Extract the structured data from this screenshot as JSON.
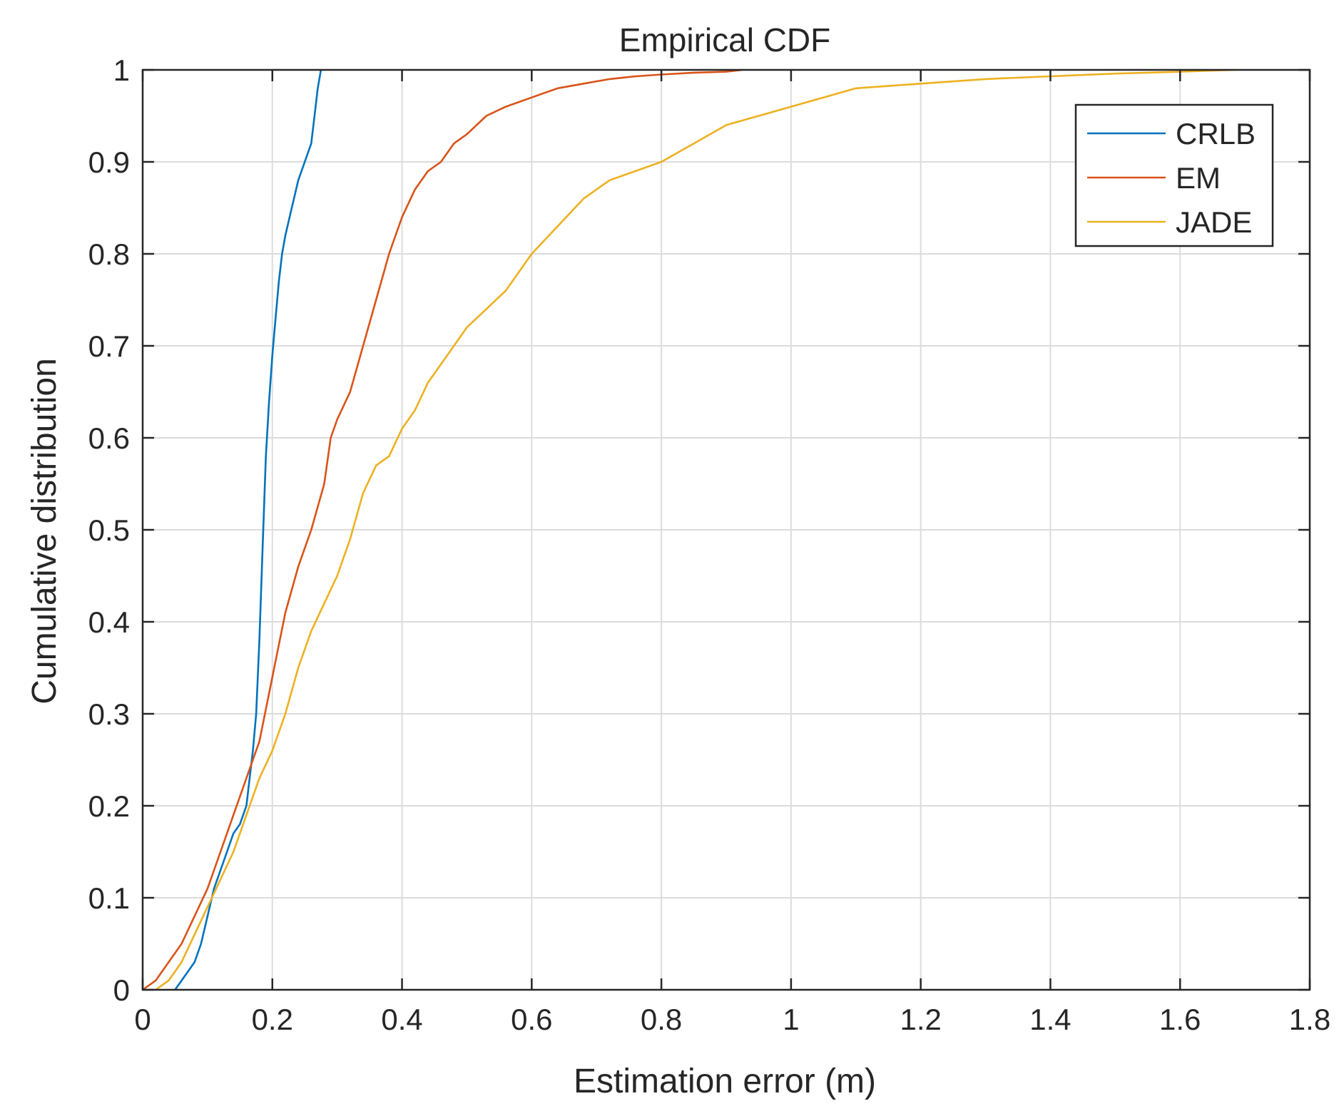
{
  "chart_data": {
    "type": "line",
    "title": "Empirical CDF",
    "xlabel": "Estimation error (m)",
    "ylabel": "Cumulative distribution",
    "xlim": [
      0,
      1.8
    ],
    "ylim": [
      0,
      1
    ],
    "grid": true,
    "legend_position": "top-right",
    "x_ticks": [
      0,
      0.2,
      0.4,
      0.6,
      0.8,
      1,
      1.2,
      1.4,
      1.6,
      1.8
    ],
    "x_tick_labels": [
      "0",
      "0.2",
      "0.4",
      "0.6",
      "0.8",
      "1",
      "1.2",
      "1.4",
      "1.6",
      "1.8"
    ],
    "y_ticks": [
      0,
      0.1,
      0.2,
      0.3,
      0.4,
      0.5,
      0.6,
      0.7,
      0.8,
      0.9,
      1
    ],
    "y_tick_labels": [
      "0",
      "0.1",
      "0.2",
      "0.3",
      "0.4",
      "0.5",
      "0.6",
      "0.7",
      "0.8",
      "0.9",
      "1"
    ],
    "series": [
      {
        "name": "CRLB",
        "color": "#0072BD",
        "x": [
          0.05,
          0.06,
          0.07,
          0.08,
          0.09,
          0.1,
          0.11,
          0.12,
          0.13,
          0.14,
          0.15,
          0.16,
          0.17,
          0.175,
          0.18,
          0.185,
          0.19,
          0.195,
          0.2,
          0.205,
          0.21,
          0.215,
          0.22,
          0.23,
          0.24,
          0.25,
          0.26,
          0.265,
          0.27,
          0.275
        ],
        "y": [
          0,
          0.01,
          0.02,
          0.03,
          0.05,
          0.08,
          0.11,
          0.13,
          0.15,
          0.17,
          0.18,
          0.2,
          0.26,
          0.3,
          0.38,
          0.48,
          0.58,
          0.64,
          0.69,
          0.73,
          0.77,
          0.8,
          0.82,
          0.85,
          0.88,
          0.9,
          0.92,
          0.95,
          0.98,
          1.0
        ]
      },
      {
        "name": "EM",
        "color": "#D95319",
        "x": [
          0,
          0.02,
          0.04,
          0.06,
          0.08,
          0.1,
          0.12,
          0.14,
          0.16,
          0.18,
          0.2,
          0.22,
          0.24,
          0.26,
          0.28,
          0.29,
          0.3,
          0.32,
          0.34,
          0.36,
          0.38,
          0.4,
          0.42,
          0.44,
          0.46,
          0.48,
          0.5,
          0.53,
          0.56,
          0.6,
          0.64,
          0.68,
          0.72,
          0.76,
          0.8,
          0.85,
          0.9,
          0.925
        ],
        "y": [
          0,
          0.01,
          0.03,
          0.05,
          0.08,
          0.11,
          0.15,
          0.19,
          0.23,
          0.27,
          0.34,
          0.41,
          0.46,
          0.5,
          0.55,
          0.6,
          0.62,
          0.65,
          0.7,
          0.75,
          0.8,
          0.84,
          0.87,
          0.89,
          0.9,
          0.92,
          0.93,
          0.95,
          0.96,
          0.97,
          0.98,
          0.985,
          0.99,
          0.993,
          0.995,
          0.997,
          0.998,
          1.0
        ]
      },
      {
        "name": "JADE",
        "color": "#EDB120",
        "x": [
          0.02,
          0.04,
          0.06,
          0.08,
          0.1,
          0.12,
          0.14,
          0.16,
          0.18,
          0.2,
          0.22,
          0.24,
          0.26,
          0.28,
          0.3,
          0.32,
          0.34,
          0.36,
          0.38,
          0.4,
          0.42,
          0.44,
          0.46,
          0.48,
          0.5,
          0.53,
          0.56,
          0.6,
          0.64,
          0.68,
          0.72,
          0.76,
          0.8,
          0.85,
          0.9,
          0.95,
          1.0,
          1.05,
          1.1,
          1.2,
          1.3,
          1.4,
          1.5,
          1.6,
          1.685
        ],
        "y": [
          0,
          0.01,
          0.03,
          0.06,
          0.09,
          0.12,
          0.15,
          0.19,
          0.23,
          0.26,
          0.3,
          0.35,
          0.39,
          0.42,
          0.45,
          0.49,
          0.54,
          0.57,
          0.58,
          0.61,
          0.63,
          0.66,
          0.68,
          0.7,
          0.72,
          0.74,
          0.76,
          0.8,
          0.83,
          0.86,
          0.88,
          0.89,
          0.9,
          0.92,
          0.94,
          0.95,
          0.96,
          0.97,
          0.98,
          0.985,
          0.99,
          0.993,
          0.996,
          0.998,
          1.0
        ]
      }
    ]
  }
}
